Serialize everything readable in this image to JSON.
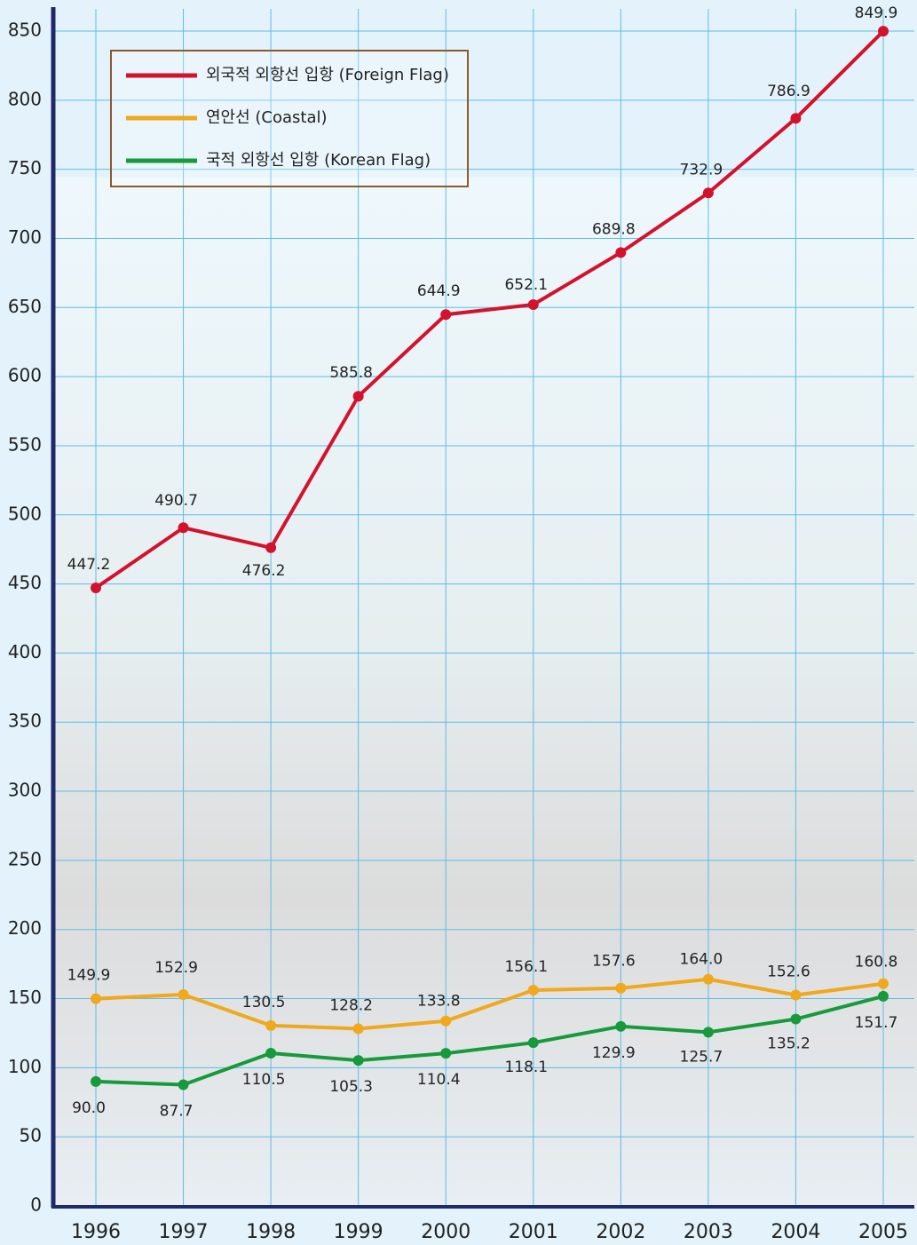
{
  "chart_data": {
    "type": "line",
    "categories": [
      "1996",
      "1997",
      "1998",
      "1999",
      "2000",
      "2001",
      "2002",
      "2003",
      "2004",
      "2005"
    ],
    "series": [
      {
        "name": "외국적 외항선 입항 (Foreign Flag)",
        "color": "#d3122d",
        "values": [
          447.2,
          490.7,
          476.2,
          585.8,
          644.9,
          652.1,
          689.8,
          732.9,
          786.9,
          849.9
        ]
      },
      {
        "name": "연안선 (Coastal)",
        "color": "#f0a81c",
        "values": [
          149.9,
          152.9,
          130.5,
          128.2,
          133.8,
          156.1,
          157.6,
          164.0,
          152.6,
          160.8
        ],
        "value_labels": [
          "149.9",
          "152.9",
          "130.5",
          "128.2",
          "133.8",
          "156.1",
          "157.6",
          "164.0",
          "152.6",
          "160.8"
        ]
      },
      {
        "name": "국적 외항선 입항 (Korean Flag)",
        "color": "#179a3c",
        "values": [
          90.0,
          87.7,
          110.5,
          105.3,
          110.4,
          118.1,
          129.9,
          125.7,
          135.2,
          151.7
        ],
        "value_labels": [
          "90.0",
          "87.7",
          "110.5",
          "105.3",
          "110.4",
          "118.1",
          "129.9",
          "125.7",
          "135.2",
          "151.7"
        ]
      }
    ],
    "ylim": [
      0,
      850
    ],
    "yticks": [
      0,
      50,
      100,
      150,
      200,
      250,
      300,
      350,
      400,
      450,
      500,
      550,
      600,
      650,
      700,
      750,
      800,
      850
    ],
    "grid": true,
    "legend": "upper left"
  }
}
